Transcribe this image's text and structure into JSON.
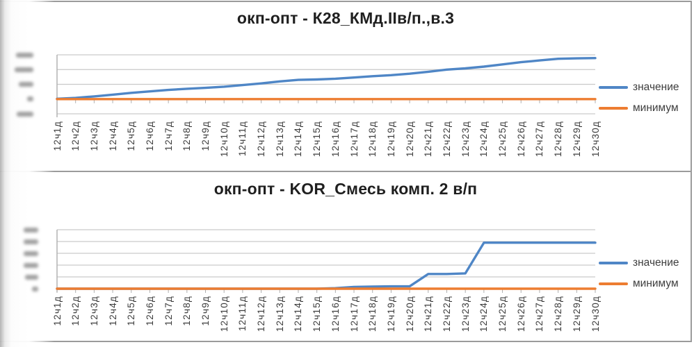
{
  "page": {
    "background": "#ffffff",
    "frame_border_color": "#9b9b9b",
    "gridline_color": "#c9c9c9",
    "axis_color": "#aeaeae",
    "y_axis_labels_legible": false
  },
  "chart_data": [
    {
      "type": "line",
      "title": "окп-опт - К28_КМд.IIв/п.,в.3",
      "categories": [
        "12ч1д",
        "12ч2д",
        "12ч3д",
        "12ч4д",
        "12ч5д",
        "12ч6д",
        "12ч7д",
        "12ч8д",
        "12ч9д",
        "12ч10д",
        "12ч11д",
        "12ч12д",
        "12ч13д",
        "12ч14д",
        "12ч15д",
        "12ч16д",
        "12ч17д",
        "12ч18д",
        "12ч19д",
        "12ч20д",
        "12ч21д",
        "12ч22д",
        "12ч23д",
        "12ч24д",
        "12ч25д",
        "12ч26д",
        "12ч27д",
        "12ч28д",
        "12ч29д",
        "12ч30д"
      ],
      "series": [
        {
          "name": "значение",
          "color": "#4F86C6",
          "values": [
            0.02,
            0.08,
            0.18,
            0.3,
            0.42,
            0.52,
            0.62,
            0.7,
            0.76,
            0.84,
            0.95,
            1.06,
            1.2,
            1.3,
            1.33,
            1.38,
            1.46,
            1.55,
            1.62,
            1.72,
            1.85,
            2.0,
            2.08,
            2.2,
            2.35,
            2.5,
            2.62,
            2.73,
            2.76,
            2.78
          ]
        },
        {
          "name": "минимум",
          "color": "#ED7D31",
          "values": [
            0,
            0,
            0,
            0,
            0,
            0,
            0,
            0,
            0,
            0,
            0,
            0,
            0,
            0,
            0,
            0,
            0,
            0,
            0,
            0,
            0,
            0,
            0,
            0,
            0,
            0,
            0,
            0,
            0,
            0
          ]
        }
      ],
      "ylim": [
        -1,
        3
      ],
      "y_gridline_step": 1,
      "y_tick_labels": [
        "illegible (blurred)",
        "illegible (blurred)",
        "illegible (blurred)",
        "illegible (blurred)",
        "illegible (blurred)"
      ],
      "value_scale_note": "values estimated in y-gridline units, axis numbers blurred in source",
      "grid": true,
      "legend_position": "right"
    },
    {
      "type": "line",
      "title": "окп-опт - KOR_Смесь комп. 2 в/п",
      "categories": [
        "12ч1д",
        "12ч2д",
        "12ч3д",
        "12ч4д",
        "12ч5д",
        "12ч6д",
        "12ч7д",
        "12ч8д",
        "12ч9д",
        "12ч10д",
        "12ч11д",
        "12ч12д",
        "12ч13д",
        "12ч14д",
        "12ч15д",
        "12ч16д",
        "12ч17д",
        "12ч18д",
        "12ч19д",
        "12ч20д",
        "12ч21д",
        "12ч22д",
        "12ч23д",
        "12ч24д",
        "12ч25д",
        "12ч26д",
        "12ч27д",
        "12ч28д",
        "12ч29д",
        "12ч30д"
      ],
      "series": [
        {
          "name": "значение",
          "color": "#4F86C6",
          "values": [
            0,
            0,
            0,
            0,
            0,
            0,
            0,
            0,
            0,
            0,
            0,
            0,
            0,
            0,
            0,
            0.05,
            0.15,
            0.18,
            0.2,
            0.2,
            1.25,
            1.25,
            1.3,
            3.9,
            3.9,
            3.9,
            3.9,
            3.9,
            3.9,
            3.9
          ]
        },
        {
          "name": "минимум",
          "color": "#ED7D31",
          "values": [
            0,
            0,
            0,
            0,
            0,
            0,
            0,
            0,
            0,
            0,
            0,
            0,
            0,
            0,
            0,
            0,
            0,
            0,
            0,
            0,
            0,
            0,
            0,
            0,
            0,
            0,
            0,
            0,
            0,
            0
          ]
        }
      ],
      "ylim": [
        0,
        5
      ],
      "y_gridline_step": 1,
      "y_tick_labels": [
        "illegible (blurred)",
        "illegible (blurred)",
        "illegible (blurred)",
        "illegible (blurred)",
        "illegible (blurred)",
        "illegible (blurred)"
      ],
      "value_scale_note": "values estimated in y-gridline units, axis numbers blurred in source",
      "grid": true,
      "legend_position": "right"
    }
  ]
}
